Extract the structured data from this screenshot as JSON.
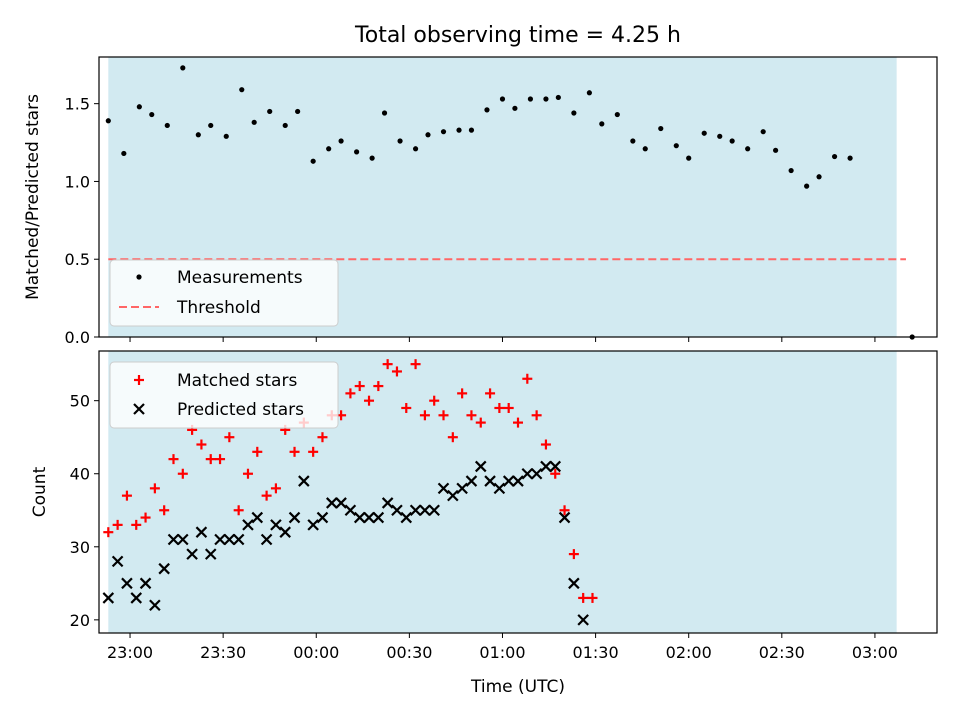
{
  "figure": {
    "title": "Total observing time = 4.25 h",
    "xlabel": "Time (UTC)"
  },
  "chart_data": [
    {
      "type": "scatter",
      "ylabel": "Matched/Predicted stars",
      "ylim": [
        0,
        1.8
      ],
      "xlim": [
        "22:50",
        "03:20"
      ],
      "yticks": [
        "0.0",
        "0.5",
        "1.0",
        "1.5"
      ],
      "shaded_span": [
        "22:53",
        "03:07"
      ],
      "shade_color": "#add8e6",
      "threshold": {
        "name": "Threshold",
        "value": 0.5,
        "x_range": [
          "22:53",
          "03:10"
        ],
        "color": "#ff6666"
      },
      "legend": {
        "location": "lower-left"
      },
      "series": [
        {
          "name": "Measurements",
          "color": "#000000",
          "points": [
            [
              "22:53",
              1.39
            ],
            [
              "22:58",
              1.18
            ],
            [
              "23:03",
              1.48
            ],
            [
              "23:07",
              1.43
            ],
            [
              "23:12",
              1.36
            ],
            [
              "23:17",
              1.73
            ],
            [
              "23:22",
              1.3
            ],
            [
              "23:26",
              1.36
            ],
            [
              "23:31",
              1.29
            ],
            [
              "23:36",
              1.59
            ],
            [
              "23:40",
              1.38
            ],
            [
              "23:45",
              1.45
            ],
            [
              "23:50",
              1.36
            ],
            [
              "23:54",
              1.45
            ],
            [
              "23:59",
              1.13
            ],
            [
              "00:04",
              1.21
            ],
            [
              "00:08",
              1.26
            ],
            [
              "00:13",
              1.19
            ],
            [
              "00:18",
              1.15
            ],
            [
              "00:22",
              1.44
            ],
            [
              "00:27",
              1.26
            ],
            [
              "00:32",
              1.21
            ],
            [
              "00:36",
              1.3
            ],
            [
              "00:41",
              1.32
            ],
            [
              "00:46",
              1.33
            ],
            [
              "00:50",
              1.33
            ],
            [
              "00:55",
              1.46
            ],
            [
              "01:00",
              1.53
            ],
            [
              "01:04",
              1.47
            ],
            [
              "01:09",
              1.53
            ],
            [
              "01:14",
              1.53
            ],
            [
              "01:18",
              1.54
            ],
            [
              "01:23",
              1.44
            ],
            [
              "01:28",
              1.57
            ],
            [
              "01:32",
              1.37
            ],
            [
              "01:37",
              1.43
            ],
            [
              "01:42",
              1.26
            ],
            [
              "01:46",
              1.21
            ],
            [
              "01:51",
              1.34
            ],
            [
              "01:56",
              1.23
            ],
            [
              "02:00",
              1.15
            ],
            [
              "02:05",
              1.31
            ],
            [
              "02:10",
              1.29
            ],
            [
              "02:14",
              1.26
            ],
            [
              "02:19",
              1.21
            ],
            [
              "02:24",
              1.32
            ],
            [
              "02:28",
              1.2
            ],
            [
              "02:33",
              1.07
            ],
            [
              "02:38",
              0.97
            ],
            [
              "02:42",
              1.03
            ],
            [
              "02:47",
              1.16
            ],
            [
              "02:52",
              1.15
            ],
            [
              "03:12",
              0.0
            ]
          ]
        }
      ]
    },
    {
      "type": "scatter",
      "ylabel": "Count",
      "ylim": [
        18.2,
        56.8
      ],
      "xlim": [
        "22:50",
        "03:20"
      ],
      "yticks": [
        "20",
        "30",
        "40",
        "50"
      ],
      "xticks": [
        "23:00",
        "23:30",
        "00:00",
        "00:30",
        "01:00",
        "01:30",
        "02:00",
        "02:30",
        "03:00"
      ],
      "shaded_span": [
        "22:53",
        "03:07"
      ],
      "shade_color": "#add8e6",
      "legend": {
        "location": "upper-left"
      },
      "series": [
        {
          "name": "Matched stars",
          "marker": "plus",
          "color": "#ff0000",
          "points": [
            [
              "22:53",
              32
            ],
            [
              "22:56",
              33
            ],
            [
              "22:59",
              37
            ],
            [
              "23:02",
              33
            ],
            [
              "23:05",
              34
            ],
            [
              "23:08",
              38
            ],
            [
              "23:11",
              35
            ],
            [
              "23:14",
              42
            ],
            [
              "23:17",
              40
            ],
            [
              "23:20",
              46
            ],
            [
              "23:23",
              44
            ],
            [
              "23:26",
              42
            ],
            [
              "23:29",
              42
            ],
            [
              "23:32",
              45
            ],
            [
              "23:35",
              35
            ],
            [
              "23:38",
              40
            ],
            [
              "23:41",
              43
            ],
            [
              "23:44",
              37
            ],
            [
              "23:47",
              38
            ],
            [
              "23:50",
              46
            ],
            [
              "23:53",
              43
            ],
            [
              "23:56",
              47
            ],
            [
              "23:59",
              43
            ],
            [
              "00:02",
              45
            ],
            [
              "00:05",
              48
            ],
            [
              "00:08",
              48
            ],
            [
              "00:11",
              51
            ],
            [
              "00:14",
              52
            ],
            [
              "00:17",
              50
            ],
            [
              "00:20",
              52
            ],
            [
              "00:23",
              55
            ],
            [
              "00:26",
              54
            ],
            [
              "00:29",
              49
            ],
            [
              "00:32",
              55
            ],
            [
              "00:35",
              48
            ],
            [
              "00:38",
              50
            ],
            [
              "00:41",
              48
            ],
            [
              "00:44",
              45
            ],
            [
              "00:47",
              51
            ],
            [
              "00:50",
              48
            ],
            [
              "00:53",
              47
            ],
            [
              "00:56",
              51
            ],
            [
              "00:59",
              49
            ],
            [
              "01:02",
              49
            ],
            [
              "01:05",
              47
            ],
            [
              "01:08",
              53
            ],
            [
              "01:11",
              48
            ],
            [
              "01:14",
              44
            ],
            [
              "01:17",
              40
            ],
            [
              "01:20",
              35
            ],
            [
              "01:23",
              29
            ],
            [
              "01:26",
              23
            ],
            [
              "01:29",
              23
            ]
          ]
        },
        {
          "name": "Predicted stars",
          "marker": "x",
          "color": "#000000",
          "points": [
            [
              "22:53",
              23
            ],
            [
              "22:56",
              28
            ],
            [
              "22:59",
              25
            ],
            [
              "23:02",
              23
            ],
            [
              "23:05",
              25
            ],
            [
              "23:08",
              22
            ],
            [
              "23:11",
              27
            ],
            [
              "23:14",
              31
            ],
            [
              "23:17",
              31
            ],
            [
              "23:20",
              29
            ],
            [
              "23:23",
              32
            ],
            [
              "23:26",
              29
            ],
            [
              "23:29",
              31
            ],
            [
              "23:32",
              31
            ],
            [
              "23:35",
              31
            ],
            [
              "23:38",
              33
            ],
            [
              "23:41",
              34
            ],
            [
              "23:44",
              31
            ],
            [
              "23:47",
              33
            ],
            [
              "23:50",
              32
            ],
            [
              "23:53",
              34
            ],
            [
              "23:56",
              39
            ],
            [
              "23:59",
              33
            ],
            [
              "00:02",
              34
            ],
            [
              "00:05",
              36
            ],
            [
              "00:08",
              36
            ],
            [
              "00:11",
              35
            ],
            [
              "00:14",
              34
            ],
            [
              "00:17",
              34
            ],
            [
              "00:20",
              34
            ],
            [
              "00:23",
              36
            ],
            [
              "00:26",
              35
            ],
            [
              "00:29",
              34
            ],
            [
              "00:32",
              35
            ],
            [
              "00:35",
              35
            ],
            [
              "00:38",
              35
            ],
            [
              "00:41",
              38
            ],
            [
              "00:44",
              37
            ],
            [
              "00:47",
              38
            ],
            [
              "00:50",
              39
            ],
            [
              "00:53",
              41
            ],
            [
              "00:56",
              39
            ],
            [
              "00:59",
              38
            ],
            [
              "01:02",
              39
            ],
            [
              "01:05",
              39
            ],
            [
              "01:08",
              40
            ],
            [
              "01:11",
              40
            ],
            [
              "01:14",
              41
            ],
            [
              "01:17",
              41
            ],
            [
              "01:20",
              34
            ],
            [
              "01:23",
              25
            ],
            [
              "01:26",
              20
            ]
          ]
        }
      ]
    }
  ]
}
